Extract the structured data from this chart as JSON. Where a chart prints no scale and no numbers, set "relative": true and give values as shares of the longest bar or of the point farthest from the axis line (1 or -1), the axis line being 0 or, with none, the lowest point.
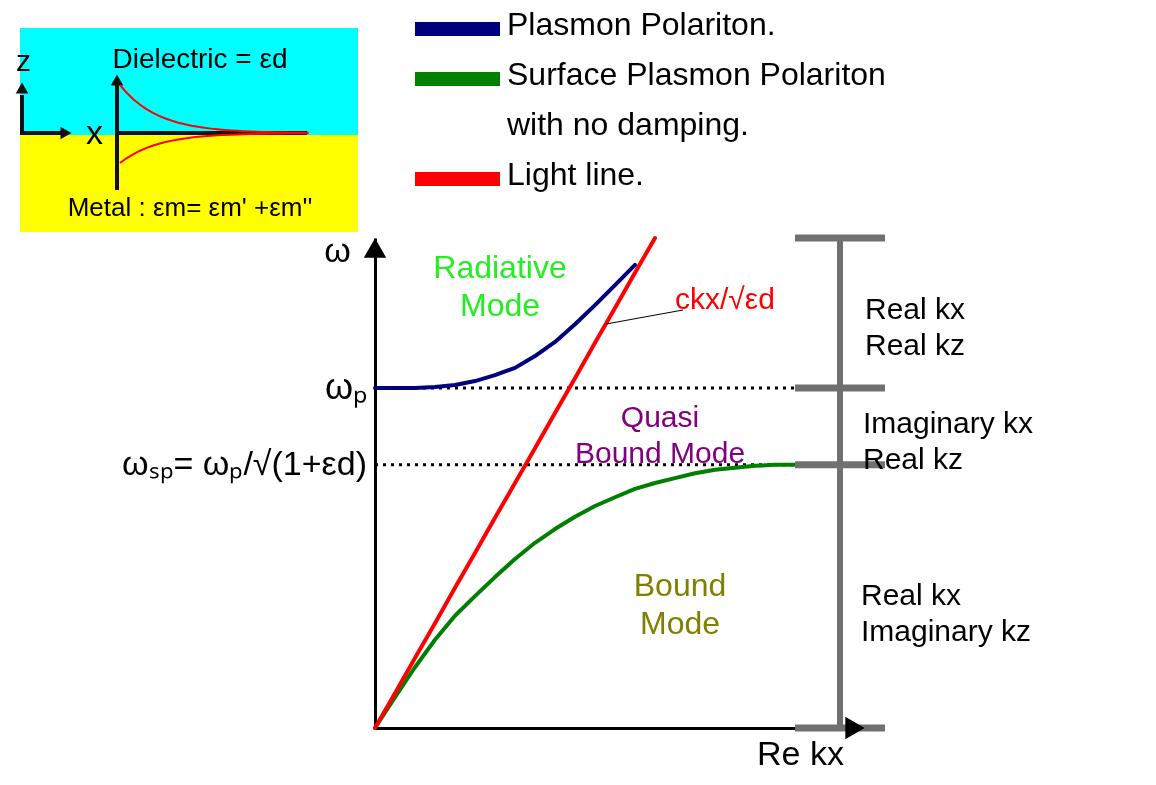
{
  "chart_data": {
    "type": "line",
    "relative": true,
    "xlabel": "Re kx",
    "ylabel": "ω",
    "legend": "top right",
    "categories": [
      null,
      null,
      null,
      null,
      null,
      null,
      null,
      null,
      null,
      null,
      null,
      null,
      null,
      null,
      null,
      null,
      null,
      null,
      null,
      null,
      null,
      null
    ],
    "series": [
      {
        "name": "Plasmon Polariton.",
        "color": "#00007f",
        "values": [
          0.694,
          0.694,
          0.694,
          0.696,
          0.7,
          0.708,
          0.72,
          0.735,
          0.759,
          0.788,
          0.824,
          0.863,
          0.904,
          0.945,
          null,
          null,
          null,
          null,
          null,
          null,
          null,
          null
        ]
      },
      {
        "name": "Surface Plasmon Polariton with no damping.",
        "color": "#007f00",
        "values": [
          0,
          0.063,
          0.124,
          0.18,
          0.229,
          0.269,
          0.308,
          0.345,
          0.378,
          0.406,
          0.431,
          0.453,
          0.471,
          0.488,
          0.5,
          0.51,
          0.52,
          0.527,
          0.531,
          0.535,
          0.537,
          0.537
        ]
      },
      {
        "name": "Light line.",
        "color": "#ff0000",
        "values": [
          0,
          0.071,
          0.143,
          0.214,
          0.286,
          0.357,
          0.429,
          0.5,
          0.571,
          0.643,
          0.714,
          0.786,
          0.857,
          0.929,
          1,
          null,
          null,
          null,
          null,
          null,
          null,
          null
        ]
      }
    ],
    "ref_lines": [
      {
        "axis": "y",
        "value": 0.694,
        "label": "ωₚ",
        "color": "#000000",
        "line_style": "dotted"
      },
      {
        "axis": "y",
        "value": 0.537,
        "label": "ωₛₚ= ωₚ/√(1+εd)",
        "color": "#000000",
        "line_style": "dotted"
      }
    ],
    "annotations": [
      "Dielectric = εd",
      "Metal : εm= εm' +εm''",
      "z",
      "x",
      "Radiative Mode",
      "Quasi Bound Mode",
      "Bound Mode",
      "Real kx Real kz",
      "Imaginary kx Real kz",
      "Real kx Imaginary kz",
      "ckx/√εd"
    ]
  }
}
